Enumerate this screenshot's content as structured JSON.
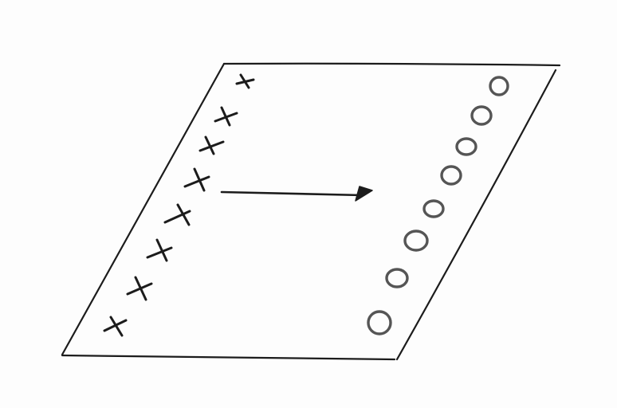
{
  "diagram": {
    "shape": "parallelogram",
    "left_column_glyph": "x",
    "left_column_count": 8,
    "right_column_glyph": "o",
    "right_column_count": 8,
    "arrow": "left-to-right",
    "ink_color": "#1c1c1c",
    "o_color": "#555555",
    "background_color": "#fdfdfd"
  }
}
